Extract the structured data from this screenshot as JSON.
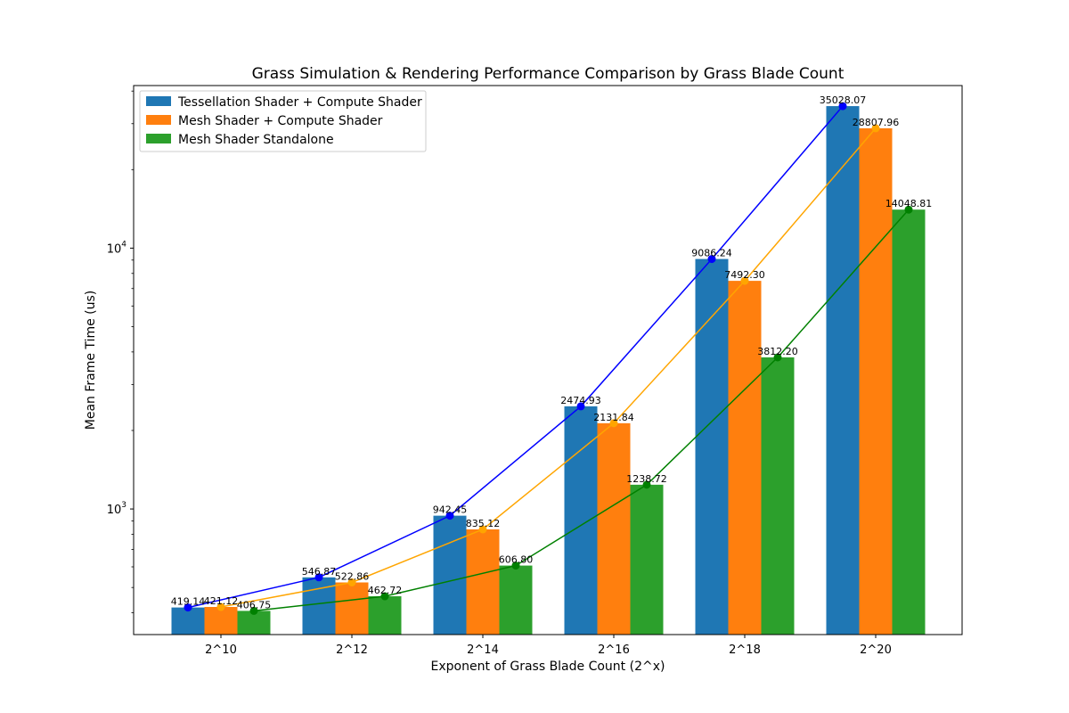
{
  "chart_data": {
    "type": "bar",
    "title": "Grass Simulation & Rendering Performance Comparison by Grass Blade Count",
    "xlabel": "Exponent of Grass Blade Count (2^x)",
    "ylabel": "Mean Frame Time (us)",
    "yscale": "log",
    "ylim": [
      330,
      42000
    ],
    "categories": [
      "2^10",
      "2^12",
      "2^14",
      "2^16",
      "2^18",
      "2^20"
    ],
    "y_ticks": [
      {
        "value": 1000,
        "base": "10",
        "exp": "3"
      },
      {
        "value": 10000,
        "base": "10",
        "exp": "4"
      }
    ],
    "legend_position": "upper left",
    "series": [
      {
        "name": "Tessellation Shader + Compute Shader",
        "bar_color": "#1f77b4",
        "line_color": "#0000ff",
        "values": [
          419.14,
          546.87,
          942.45,
          2474.93,
          9086.24,
          35028.07
        ],
        "labels": [
          "419.14",
          "546.87",
          "942.45",
          "2474.93",
          "9086.24",
          "35028.07"
        ]
      },
      {
        "name": "Mesh Shader + Compute Shader",
        "bar_color": "#ff7f0e",
        "line_color": "#ffa500",
        "values": [
          421.12,
          522.86,
          835.12,
          2131.84,
          7492.3,
          28807.96
        ],
        "labels": [
          "421.12",
          "522.86",
          "835.12",
          "2131.84",
          "7492.30",
          "28807.96"
        ]
      },
      {
        "name": "Mesh Shader Standalone",
        "bar_color": "#2ca02c",
        "line_color": "#008000",
        "values": [
          406.75,
          462.72,
          606.8,
          1238.72,
          3812.2,
          14048.81
        ],
        "labels": [
          "406.75",
          "462.72",
          "606.80",
          "1238.72",
          "3812.20",
          "14048.81"
        ]
      }
    ]
  }
}
